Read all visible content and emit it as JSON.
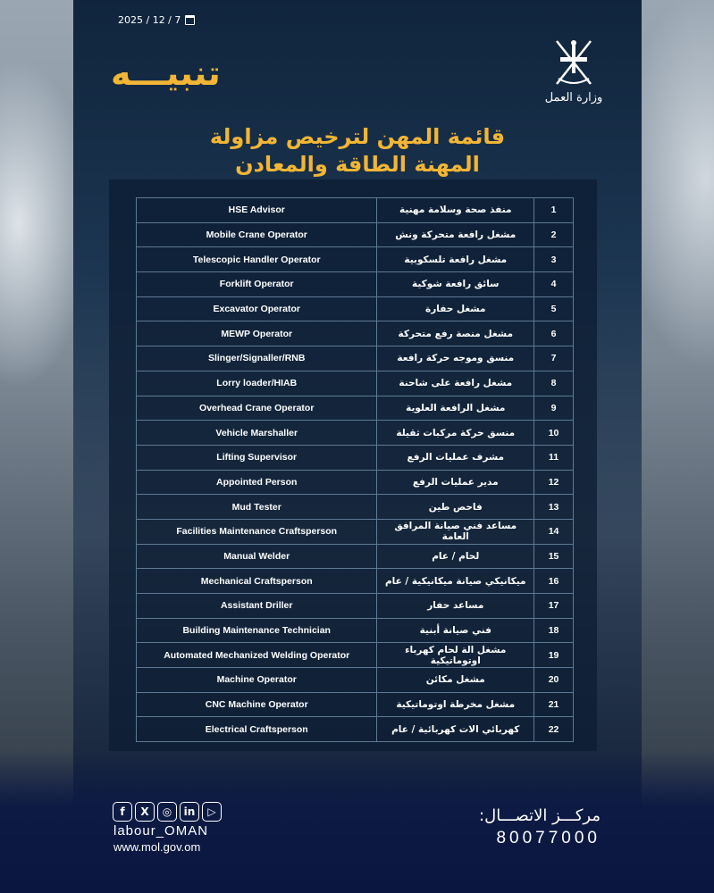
{
  "date": "2025 / 12 / 7",
  "alert_title": "تنبيـــه",
  "logo_text": "وزارة العمل",
  "title_lines": [
    "قائمة المهن لترخيص مزاولة",
    "المهنة الطاقة والمعادن"
  ],
  "rows": [
    {
      "n": "1",
      "ar": "منفذ صحة وسلامة مهنية",
      "en": "HSE Advisor"
    },
    {
      "n": "2",
      "ar": "مشغل رافعة متحركة ونش",
      "en": "Mobile Crane Operator"
    },
    {
      "n": "3",
      "ar": "مشغل رافعة تلسكوبية",
      "en": "Telescopic Handler Operator"
    },
    {
      "n": "4",
      "ar": "سائق رافعة شوكية",
      "en": "Forklift Operator"
    },
    {
      "n": "5",
      "ar": "مشغل حفارة",
      "en": "Excavator Operator"
    },
    {
      "n": "6",
      "ar": "مشغل منصة رفع متحركة",
      "en": "MEWP Operator"
    },
    {
      "n": "7",
      "ar": "منسق وموجه حركة رافعة",
      "en": "Slinger/Signaller/RNB"
    },
    {
      "n": "8",
      "ar": "مشغل رافعة على شاحنة",
      "en": "Lorry loader/HIAB"
    },
    {
      "n": "9",
      "ar": "مشغل الرافعة العلوية",
      "en": "Overhead Crane Operator"
    },
    {
      "n": "10",
      "ar": "منسق حركة مركبات ثقيلة",
      "en": "Vehicle Marshaller"
    },
    {
      "n": "11",
      "ar": "مشرف عمليات الرفع",
      "en": "Lifting Supervisor"
    },
    {
      "n": "12",
      "ar": "مدير عمليات الرفع",
      "en": "Appointed Person"
    },
    {
      "n": "13",
      "ar": "فاحص طين",
      "en": "Mud Tester"
    },
    {
      "n": "14",
      "ar": "مساعد فني صيانة المرافق العامة",
      "en": "Facilities Maintenance Craftsperson"
    },
    {
      "n": "15",
      "ar": "لحام / عام",
      "en": "Manual Welder"
    },
    {
      "n": "16",
      "ar": "ميكانيكي صيانة ميكانيكية / عام",
      "en": "Mechanical Craftsperson"
    },
    {
      "n": "17",
      "ar": "مساعد حفار",
      "en": "Assistant Driller"
    },
    {
      "n": "18",
      "ar": "فني صيانة أبنية",
      "en": "Building Maintenance Technician"
    },
    {
      "n": "19",
      "ar": "مشغل الة لحام كهرباء اوتوماتيكية",
      "en": "Automated Mechanized Welding Operator"
    },
    {
      "n": "20",
      "ar": "مشغل مكائن",
      "en": "Machine Operator"
    },
    {
      "n": "21",
      "ar": "مشغل مخرطة اوتوماتيكية",
      "en": "CNC Machine Operator"
    },
    {
      "n": "22",
      "ar": "كهربائي الات كهربائية / عام",
      "en": "Electrical Craftsperson"
    }
  ],
  "footer": {
    "social_icons": [
      "facebook-icon",
      "x-icon",
      "instagram-icon",
      "linkedin-icon",
      "youtube-icon"
    ],
    "social_glyphs": [
      "f",
      "X",
      "◎",
      "in",
      "▷"
    ],
    "handle": "labour_OMAN",
    "website": "www.mol.gov.om",
    "contact_label": "مركـــز الاتصـــال:",
    "phone": "80077000"
  },
  "colors": {
    "accent": "#f2b535",
    "panel": "#10253d",
    "footer": "#0b1640"
  }
}
